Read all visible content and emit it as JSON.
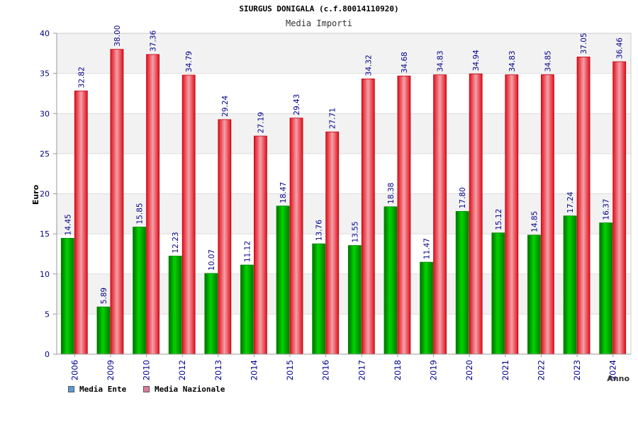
{
  "chart_data": {
    "type": "bar",
    "title": "SIURGUS DONIGALA (c.f.80014110920)",
    "subtitle": "Media Importi",
    "xlabel": "Anno",
    "ylabel": "Euro",
    "ylim": [
      0,
      40
    ],
    "yticks": [
      "0",
      "5",
      "10",
      "15",
      "20",
      "25",
      "30",
      "35",
      "40"
    ],
    "grid": true,
    "legend_position": "bottom-left",
    "categories": [
      "2006",
      "2009",
      "2010",
      "2012",
      "2013",
      "2014",
      "2015",
      "2016",
      "2017",
      "2018",
      "2019",
      "2020",
      "2021",
      "2022",
      "2023",
      "2024"
    ],
    "series": [
      {
        "name": "Media Ente",
        "color": "#00c000",
        "values": [
          14.45,
          5.89,
          15.85,
          12.23,
          10.07,
          11.12,
          18.47,
          13.76,
          13.55,
          18.38,
          11.47,
          17.8,
          15.12,
          14.85,
          17.24,
          16.37
        ],
        "labels": [
          "14.45",
          "5.89",
          "15.85",
          "12.23",
          "10.07",
          "11.12",
          "18.47",
          "13.76",
          "13.55",
          "18.38",
          "11.47",
          "17.80",
          "15.12",
          "14.85",
          "17.24",
          "16.37"
        ]
      },
      {
        "name": "Media Nazionale",
        "color": "#e8202a",
        "values": [
          32.82,
          38.0,
          37.36,
          34.79,
          29.24,
          27.19,
          29.43,
          27.71,
          34.32,
          34.68,
          34.83,
          34.94,
          34.83,
          34.85,
          37.05,
          36.46
        ],
        "labels": [
          "32.82",
          "38.00",
          "37.36",
          "34.79",
          "29.24",
          "27.19",
          "29.43",
          "27.71",
          "34.32",
          "34.68",
          "34.83",
          "34.94",
          "34.83",
          "34.85",
          "37.05",
          "36.46"
        ]
      }
    ]
  },
  "legend": {
    "items": [
      {
        "label": "Media Ente",
        "color": "#5b9bd5"
      },
      {
        "label": "Media Nazionale",
        "color": "#e07aa0"
      }
    ]
  }
}
